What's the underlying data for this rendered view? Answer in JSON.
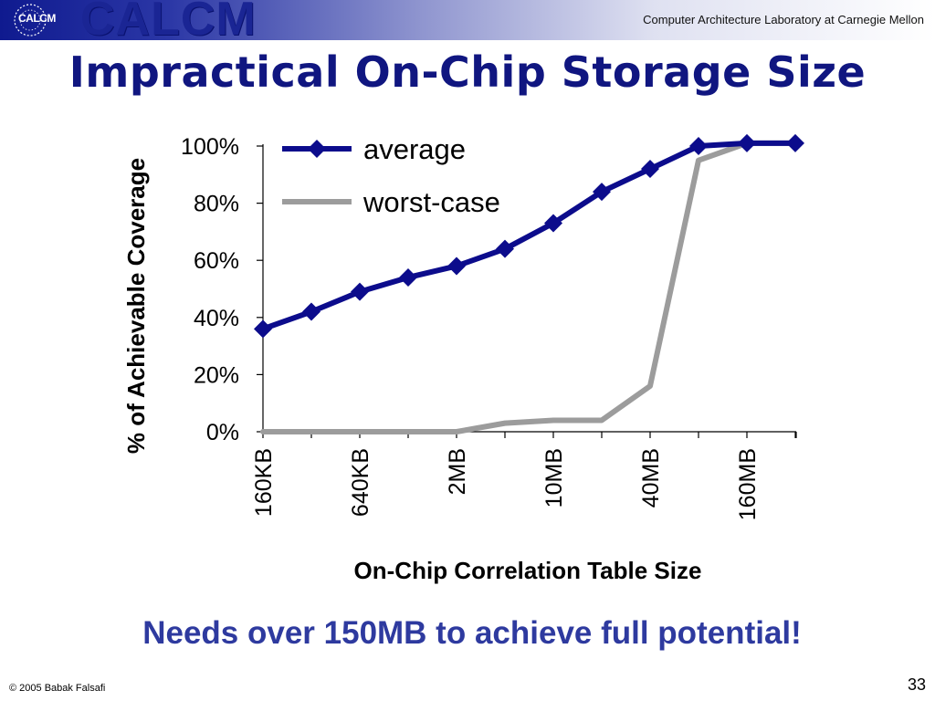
{
  "header": {
    "logo_small": "CALCM",
    "logo_big": "CALCM",
    "lab_name": "Computer Architecture Laboratory at Carnegie Mellon"
  },
  "slide": {
    "title": "Impractical On-Chip Storage Size",
    "tagline": "Needs over 150MB to achieve full potential!",
    "copyright": "© 2005 Babak Falsafi",
    "page_number": "33"
  },
  "colors": {
    "average": "#0c0c8c",
    "worst_case": "#9c9c9c",
    "title": "#101680",
    "tagline": "#2e3a9f"
  },
  "chart_data": {
    "type": "line",
    "title": "",
    "xlabel": "On-Chip Correlation Table Size",
    "ylabel": "% of Achievable Coverage",
    "x_tick_labels": [
      "160KB",
      "",
      "640KB",
      "",
      "2MB",
      "",
      "10MB",
      "",
      "40MB",
      "",
      "160MB",
      ""
    ],
    "y_ticks": [
      "0%",
      "20%",
      "40%",
      "60%",
      "80%",
      "100%"
    ],
    "ylim": [
      0,
      100
    ],
    "grid": false,
    "legend_position": "top-left",
    "series": [
      {
        "name": "average",
        "color": "#0c0c8c",
        "marker": "diamond",
        "values": [
          36,
          42,
          49,
          54,
          58,
          64,
          73,
          84,
          92,
          100,
          101,
          101
        ]
      },
      {
        "name": "worst-case",
        "color": "#9c9c9c",
        "marker": "none",
        "values": [
          0,
          0,
          0,
          0,
          0,
          3,
          4,
          4,
          16,
          95,
          101,
          101
        ]
      }
    ]
  }
}
